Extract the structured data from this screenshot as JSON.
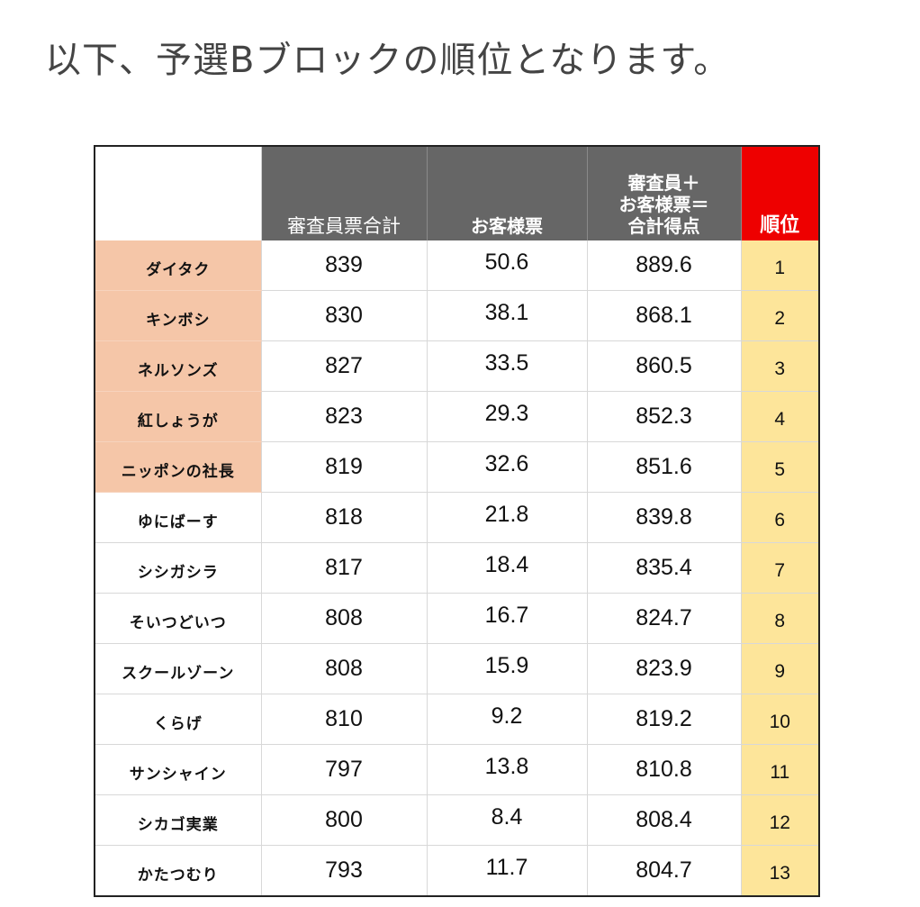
{
  "title": "以下、予選Bブロックの順位となります。",
  "table": {
    "headers": {
      "name": "",
      "judges": "審査員票合計",
      "audience": "お客様票",
      "total": "審査員＋\nお客様票＝\n合計得点",
      "rank": "順位"
    },
    "rows": [
      {
        "name": "ダイタク",
        "judges": "839",
        "audience": "50.6",
        "total": "889.6",
        "rank": "1",
        "qualified": true
      },
      {
        "name": "キンボシ",
        "judges": "830",
        "audience": "38.1",
        "total": "868.1",
        "rank": "2",
        "qualified": true
      },
      {
        "name": "ネルソンズ",
        "judges": "827",
        "audience": "33.5",
        "total": "860.5",
        "rank": "3",
        "qualified": true
      },
      {
        "name": "紅しょうが",
        "judges": "823",
        "audience": "29.3",
        "total": "852.3",
        "rank": "4",
        "qualified": true
      },
      {
        "name": "ニッポンの社長",
        "judges": "819",
        "audience": "32.6",
        "total": "851.6",
        "rank": "5",
        "qualified": true
      },
      {
        "name": "ゆにばーす",
        "judges": "818",
        "audience": "21.8",
        "total": "839.8",
        "rank": "6",
        "qualified": false
      },
      {
        "name": "シシガシラ",
        "judges": "817",
        "audience": "18.4",
        "total": "835.4",
        "rank": "7",
        "qualified": false
      },
      {
        "name": "そいつどいつ",
        "judges": "808",
        "audience": "16.7",
        "total": "824.7",
        "rank": "8",
        "qualified": false
      },
      {
        "name": "スクールゾーン",
        "judges": "808",
        "audience": "15.9",
        "total": "823.9",
        "rank": "9",
        "qualified": false
      },
      {
        "name": "くらげ",
        "judges": "810",
        "audience": "9.2",
        "total": "819.2",
        "rank": "10",
        "qualified": false
      },
      {
        "name": "サンシャイン",
        "judges": "797",
        "audience": "13.8",
        "total": "810.8",
        "rank": "11",
        "qualified": false
      },
      {
        "name": "シカゴ実業",
        "judges": "800",
        "audience": "8.4",
        "total": "808.4",
        "rank": "12",
        "qualified": false
      },
      {
        "name": "かたつむり",
        "judges": "793",
        "audience": "11.7",
        "total": "804.7",
        "rank": "13",
        "qualified": false
      }
    ]
  },
  "colors": {
    "header_gray": "#666666",
    "rank_header_red": "#ee0000",
    "rank_cell_yellow": "#fde59a",
    "qualified_name_peach": "#f5c6a8"
  }
}
